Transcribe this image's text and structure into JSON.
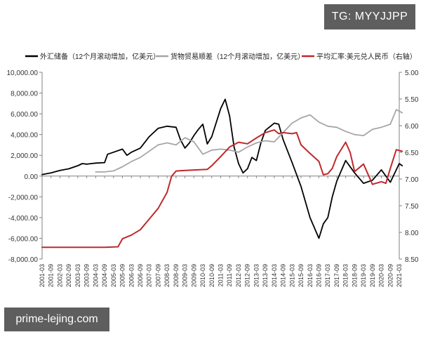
{
  "watermarks": {
    "tg": "TG: MYYJJPP",
    "site": "prime-lejing.com"
  },
  "chart_data": {
    "type": "line",
    "legend_position": "top",
    "grid": false,
    "left_axis": {
      "ylim": [
        -8000,
        10000
      ],
      "ticks": [
        -8000,
        -6000,
        -4000,
        -2000,
        0,
        2000,
        4000,
        6000,
        8000,
        10000
      ],
      "tick_labels": [
        "-8,000.00",
        "-6,000.00",
        "-4,000.00",
        "-2,000.00",
        "0.00",
        "2,000.00",
        "4,000.00",
        "6,000.00",
        "8,000.00",
        "10,000.00"
      ]
    },
    "right_axis": {
      "inverted": true,
      "ylim": [
        5.0,
        8.5
      ],
      "ticks": [
        5.0,
        5.5,
        6.0,
        6.5,
        7.0,
        7.5,
        8.0,
        8.5
      ],
      "tick_labels": [
        "5.00",
        "5.50",
        "6.00",
        "6.50",
        "7.00",
        "7.50",
        "8.00",
        "8.50"
      ]
    },
    "x_axis": {
      "start": "2001-03",
      "end": "2021-03",
      "tick_labels": [
        "2001-03",
        "2001-09",
        "2002-03",
        "2002-09",
        "2003-03",
        "2003-09",
        "2004-03",
        "2004-09",
        "2005-03",
        "2005-09",
        "2006-03",
        "2006-09",
        "2007-03",
        "2007-09",
        "2008-03",
        "2008-09",
        "2009-03",
        "2009-09",
        "2010-03",
        "2010-09",
        "2011-03",
        "2011-09",
        "2012-03",
        "2012-09",
        "2013-03",
        "2013-09",
        "2014-03",
        "2014-09",
        "2015-03",
        "2015-09",
        "2016-03",
        "2016-09",
        "2017-03",
        "2017-09",
        "2018-03",
        "2018-09",
        "2019-03",
        "2019-09",
        "2020-03",
        "2020-09",
        "2021-03"
      ]
    },
    "series": [
      {
        "name": "外汇储备（12个月滚动增加，亿美元）",
        "axis": "left",
        "color": "#000000",
        "points": [
          [
            "2001-03",
            150
          ],
          [
            "2001-09",
            300
          ],
          [
            "2002-03",
            550
          ],
          [
            "2002-09",
            700
          ],
          [
            "2003-03",
            1000
          ],
          [
            "2003-06",
            1200
          ],
          [
            "2003-09",
            1150
          ],
          [
            "2004-03",
            1250
          ],
          [
            "2004-09",
            1300
          ],
          [
            "2004-11",
            2100
          ],
          [
            "2005-03",
            2300
          ],
          [
            "2005-09",
            2600
          ],
          [
            "2005-12",
            2000
          ],
          [
            "2006-03",
            2300
          ],
          [
            "2006-09",
            2700
          ],
          [
            "2007-03",
            3800
          ],
          [
            "2007-09",
            4600
          ],
          [
            "2008-03",
            4800
          ],
          [
            "2008-09",
            4700
          ],
          [
            "2008-12",
            3500
          ],
          [
            "2009-03",
            2700
          ],
          [
            "2009-06",
            3200
          ],
          [
            "2009-09",
            3900
          ],
          [
            "2009-12",
            4500
          ],
          [
            "2010-03",
            5000
          ],
          [
            "2010-06",
            3100
          ],
          [
            "2010-09",
            3800
          ],
          [
            "2011-03",
            6500
          ],
          [
            "2011-06",
            7400
          ],
          [
            "2011-09",
            5800
          ],
          [
            "2011-12",
            2800
          ],
          [
            "2012-03",
            1200
          ],
          [
            "2012-06",
            300
          ],
          [
            "2012-09",
            700
          ],
          [
            "2012-12",
            1800
          ],
          [
            "2013-03",
            1500
          ],
          [
            "2013-06",
            3200
          ],
          [
            "2013-09",
            4400
          ],
          [
            "2014-03",
            5100
          ],
          [
            "2014-06",
            5000
          ],
          [
            "2014-09",
            3500
          ],
          [
            "2015-03",
            1300
          ],
          [
            "2015-09",
            -1000
          ],
          [
            "2016-03",
            -4000
          ],
          [
            "2016-09",
            -6000
          ],
          [
            "2016-12",
            -4600
          ],
          [
            "2017-03",
            -4000
          ],
          [
            "2017-06",
            -2000
          ],
          [
            "2017-09",
            -500
          ],
          [
            "2018-03",
            1500
          ],
          [
            "2018-09",
            300
          ],
          [
            "2019-03",
            -700
          ],
          [
            "2019-09",
            -400
          ],
          [
            "2020-03",
            600
          ],
          [
            "2020-09",
            -600
          ],
          [
            "2021-03",
            1200
          ],
          [
            "2021-05",
            1000
          ]
        ]
      },
      {
        "name": "货物贸易顺差（12个月滚动增加，亿美元）",
        "axis": "left",
        "color": "#a6a6a6",
        "points": [
          [
            "2004-03",
            400
          ],
          [
            "2004-09",
            400
          ],
          [
            "2005-03",
            500
          ],
          [
            "2005-09",
            900
          ],
          [
            "2006-03",
            1400
          ],
          [
            "2006-09",
            1800
          ],
          [
            "2007-03",
            2400
          ],
          [
            "2007-09",
            3000
          ],
          [
            "2008-03",
            3200
          ],
          [
            "2008-09",
            3000
          ],
          [
            "2009-03",
            3700
          ],
          [
            "2009-09",
            3300
          ],
          [
            "2010-03",
            2100
          ],
          [
            "2010-09",
            2500
          ],
          [
            "2011-03",
            2600
          ],
          [
            "2011-09",
            2500
          ],
          [
            "2012-03",
            2300
          ],
          [
            "2012-09",
            2800
          ],
          [
            "2013-03",
            3200
          ],
          [
            "2013-09",
            3400
          ],
          [
            "2014-03",
            3300
          ],
          [
            "2014-09",
            4200
          ],
          [
            "2015-03",
            5100
          ],
          [
            "2015-09",
            5600
          ],
          [
            "2016-03",
            5900
          ],
          [
            "2016-09",
            5200
          ],
          [
            "2017-03",
            4800
          ],
          [
            "2017-09",
            4700
          ],
          [
            "2018-03",
            4300
          ],
          [
            "2018-09",
            4000
          ],
          [
            "2019-03",
            3900
          ],
          [
            "2019-09",
            4500
          ],
          [
            "2020-03",
            4700
          ],
          [
            "2020-09",
            5000
          ],
          [
            "2021-01",
            6400
          ],
          [
            "2021-05",
            6100
          ]
        ]
      },
      {
        "name": "平均汇率:美元兑人民币（右轴）",
        "axis": "right",
        "color": "#c0282c",
        "points": [
          [
            "2001-03",
            8.28
          ],
          [
            "2004-09",
            8.28
          ],
          [
            "2005-06",
            8.27
          ],
          [
            "2005-09",
            8.12
          ],
          [
            "2006-03",
            8.05
          ],
          [
            "2006-09",
            7.95
          ],
          [
            "2007-03",
            7.75
          ],
          [
            "2007-09",
            7.55
          ],
          [
            "2008-03",
            7.25
          ],
          [
            "2008-06",
            6.95
          ],
          [
            "2008-09",
            6.85
          ],
          [
            "2009-03",
            6.84
          ],
          [
            "2010-06",
            6.82
          ],
          [
            "2010-09",
            6.75
          ],
          [
            "2011-03",
            6.58
          ],
          [
            "2011-09",
            6.4
          ],
          [
            "2012-03",
            6.31
          ],
          [
            "2012-09",
            6.34
          ],
          [
            "2013-03",
            6.23
          ],
          [
            "2013-09",
            6.13
          ],
          [
            "2014-03",
            6.08
          ],
          [
            "2014-06",
            6.15
          ],
          [
            "2014-09",
            6.13
          ],
          [
            "2015-03",
            6.15
          ],
          [
            "2015-06",
            6.13
          ],
          [
            "2015-09",
            6.36
          ],
          [
            "2016-03",
            6.52
          ],
          [
            "2016-09",
            6.67
          ],
          [
            "2016-12",
            6.92
          ],
          [
            "2017-03",
            6.9
          ],
          [
            "2017-06",
            6.8
          ],
          [
            "2017-09",
            6.58
          ],
          [
            "2018-03",
            6.31
          ],
          [
            "2018-06",
            6.5
          ],
          [
            "2018-09",
            6.86
          ],
          [
            "2019-03",
            6.72
          ],
          [
            "2019-09",
            7.1
          ],
          [
            "2020-03",
            7.05
          ],
          [
            "2020-06",
            7.08
          ],
          [
            "2020-09",
            6.8
          ],
          [
            "2021-01",
            6.45
          ],
          [
            "2021-05",
            6.48
          ]
        ]
      }
    ]
  }
}
